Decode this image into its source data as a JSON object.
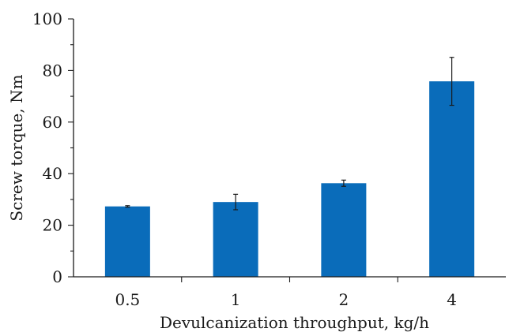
{
  "chart_data": {
    "type": "bar",
    "categories": [
      "0.5",
      "1",
      "2",
      "4"
    ],
    "values": [
      27.3,
      29.0,
      36.3,
      75.8
    ],
    "error": [
      0.3,
      3.0,
      1.2,
      9.3
    ],
    "xlabel": "Devulcanization throughput, kg/h",
    "ylabel": "Screw torque, Nm",
    "ylim": [
      0,
      100
    ],
    "yticks": [
      0,
      20,
      40,
      60,
      80,
      100
    ],
    "grid": false,
    "bar_color": "#0a6cba"
  }
}
